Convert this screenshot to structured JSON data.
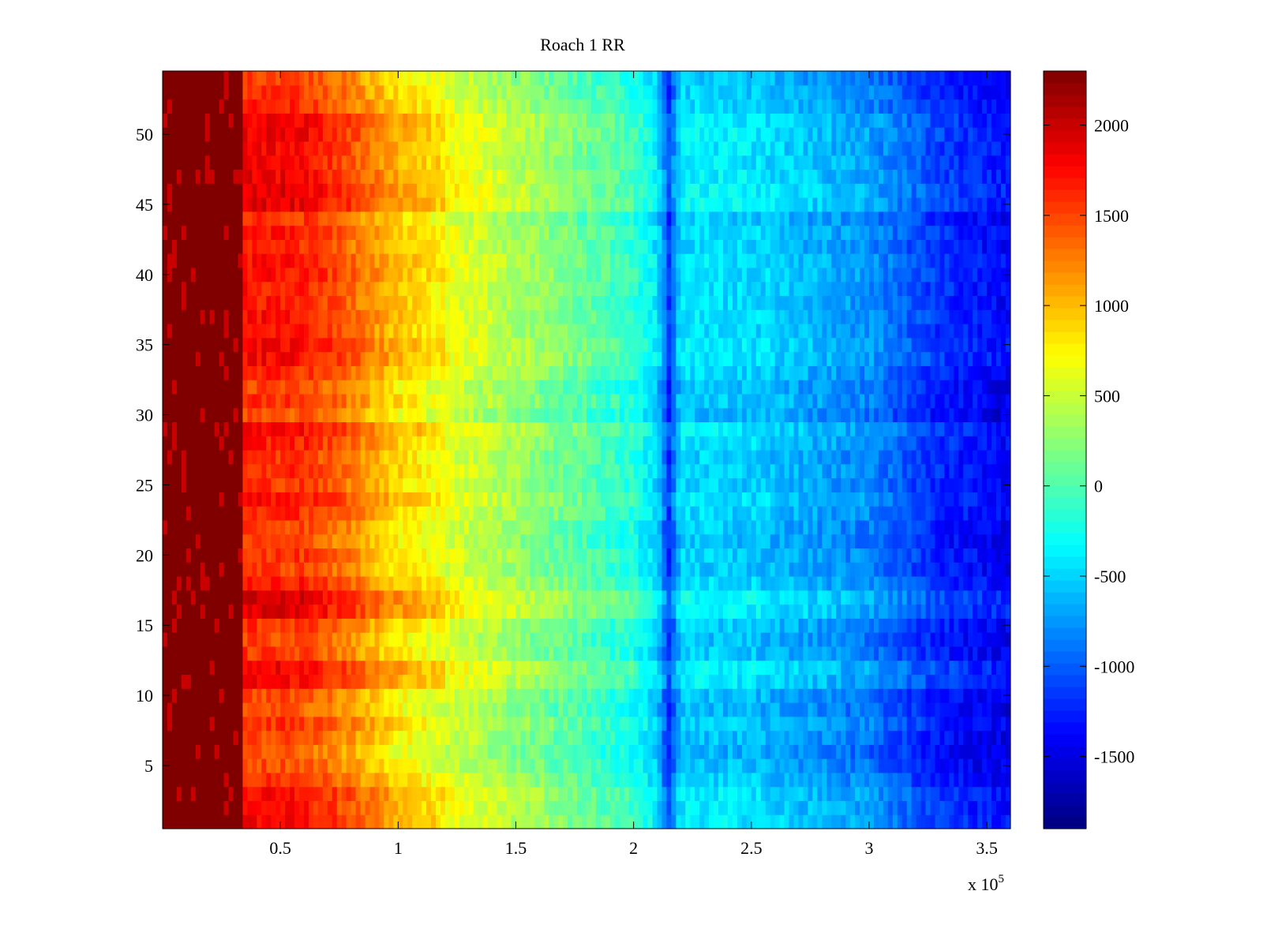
{
  "chart_data": {
    "type": "heatmap",
    "title": "Roach 1 RR",
    "xlabel": "",
    "ylabel": "",
    "x_exponent_label": "x 10",
    "x_exponent_power": "5",
    "xlim": [
      0,
      3.6
    ],
    "ylim": [
      0.5,
      54.5
    ],
    "x_ticks": [
      {
        "value": 0.5,
        "label": "0.5"
      },
      {
        "value": 1,
        "label": "1"
      },
      {
        "value": 1.5,
        "label": "1.5"
      },
      {
        "value": 2,
        "label": "2"
      },
      {
        "value": 2.5,
        "label": "2.5"
      },
      {
        "value": 3,
        "label": "3"
      },
      {
        "value": 3.5,
        "label": "3.5"
      }
    ],
    "y_ticks": [
      {
        "value": 5,
        "label": "5"
      },
      {
        "value": 10,
        "label": "10"
      },
      {
        "value": 15,
        "label": "15"
      },
      {
        "value": 20,
        "label": "20"
      },
      {
        "value": 25,
        "label": "25"
      },
      {
        "value": 30,
        "label": "30"
      },
      {
        "value": 35,
        "label": "35"
      },
      {
        "value": 40,
        "label": "40"
      },
      {
        "value": 45,
        "label": "45"
      },
      {
        "value": 50,
        "label": "50"
      }
    ],
    "rows": 54,
    "colorbar": {
      "colormap": "jet",
      "min": -1900,
      "max": 2300,
      "ticks": [
        {
          "value": 2000,
          "label": "2000"
        },
        {
          "value": 1500,
          "label": "1500"
        },
        {
          "value": 1000,
          "label": "1000"
        },
        {
          "value": 500,
          "label": "500"
        },
        {
          "value": 0,
          "label": "0"
        },
        {
          "value": -500,
          "label": "-500"
        },
        {
          "value": -1000,
          "label": "-1000"
        },
        {
          "value": -1500,
          "label": "-1500"
        }
      ]
    },
    "column_profile": [
      {
        "x": 0.0,
        "value": 2300
      },
      {
        "x": 0.33,
        "value": 2300
      },
      {
        "x": 0.34,
        "value": 1500
      },
      {
        "x": 0.6,
        "value": 1450
      },
      {
        "x": 0.8,
        "value": 1150
      },
      {
        "x": 1.0,
        "value": 750
      },
      {
        "x": 1.5,
        "value": 250
      },
      {
        "x": 2.0,
        "value": -250
      },
      {
        "x": 2.1,
        "value": -550
      },
      {
        "x": 2.15,
        "value": -1250
      },
      {
        "x": 2.2,
        "value": -550
      },
      {
        "x": 2.5,
        "value": -600
      },
      {
        "x": 3.0,
        "value": -900
      },
      {
        "x": 3.3,
        "value": -1300
      },
      {
        "x": 3.6,
        "value": -1500
      }
    ],
    "row_offsets": [
      300,
      250,
      300,
      100,
      0,
      -100,
      0,
      100,
      -50,
      0,
      300,
      350,
      50,
      0,
      100,
      400,
      450,
      200,
      50,
      100,
      0,
      50,
      150,
      250,
      100,
      150,
      100,
      200,
      300,
      -50,
      100,
      0,
      150,
      300,
      300,
      200,
      250,
      200,
      200,
      250,
      250,
      150,
      200,
      100,
      400,
      400,
      350,
      300,
      300,
      350,
      350,
      150,
      100,
      50
    ]
  }
}
